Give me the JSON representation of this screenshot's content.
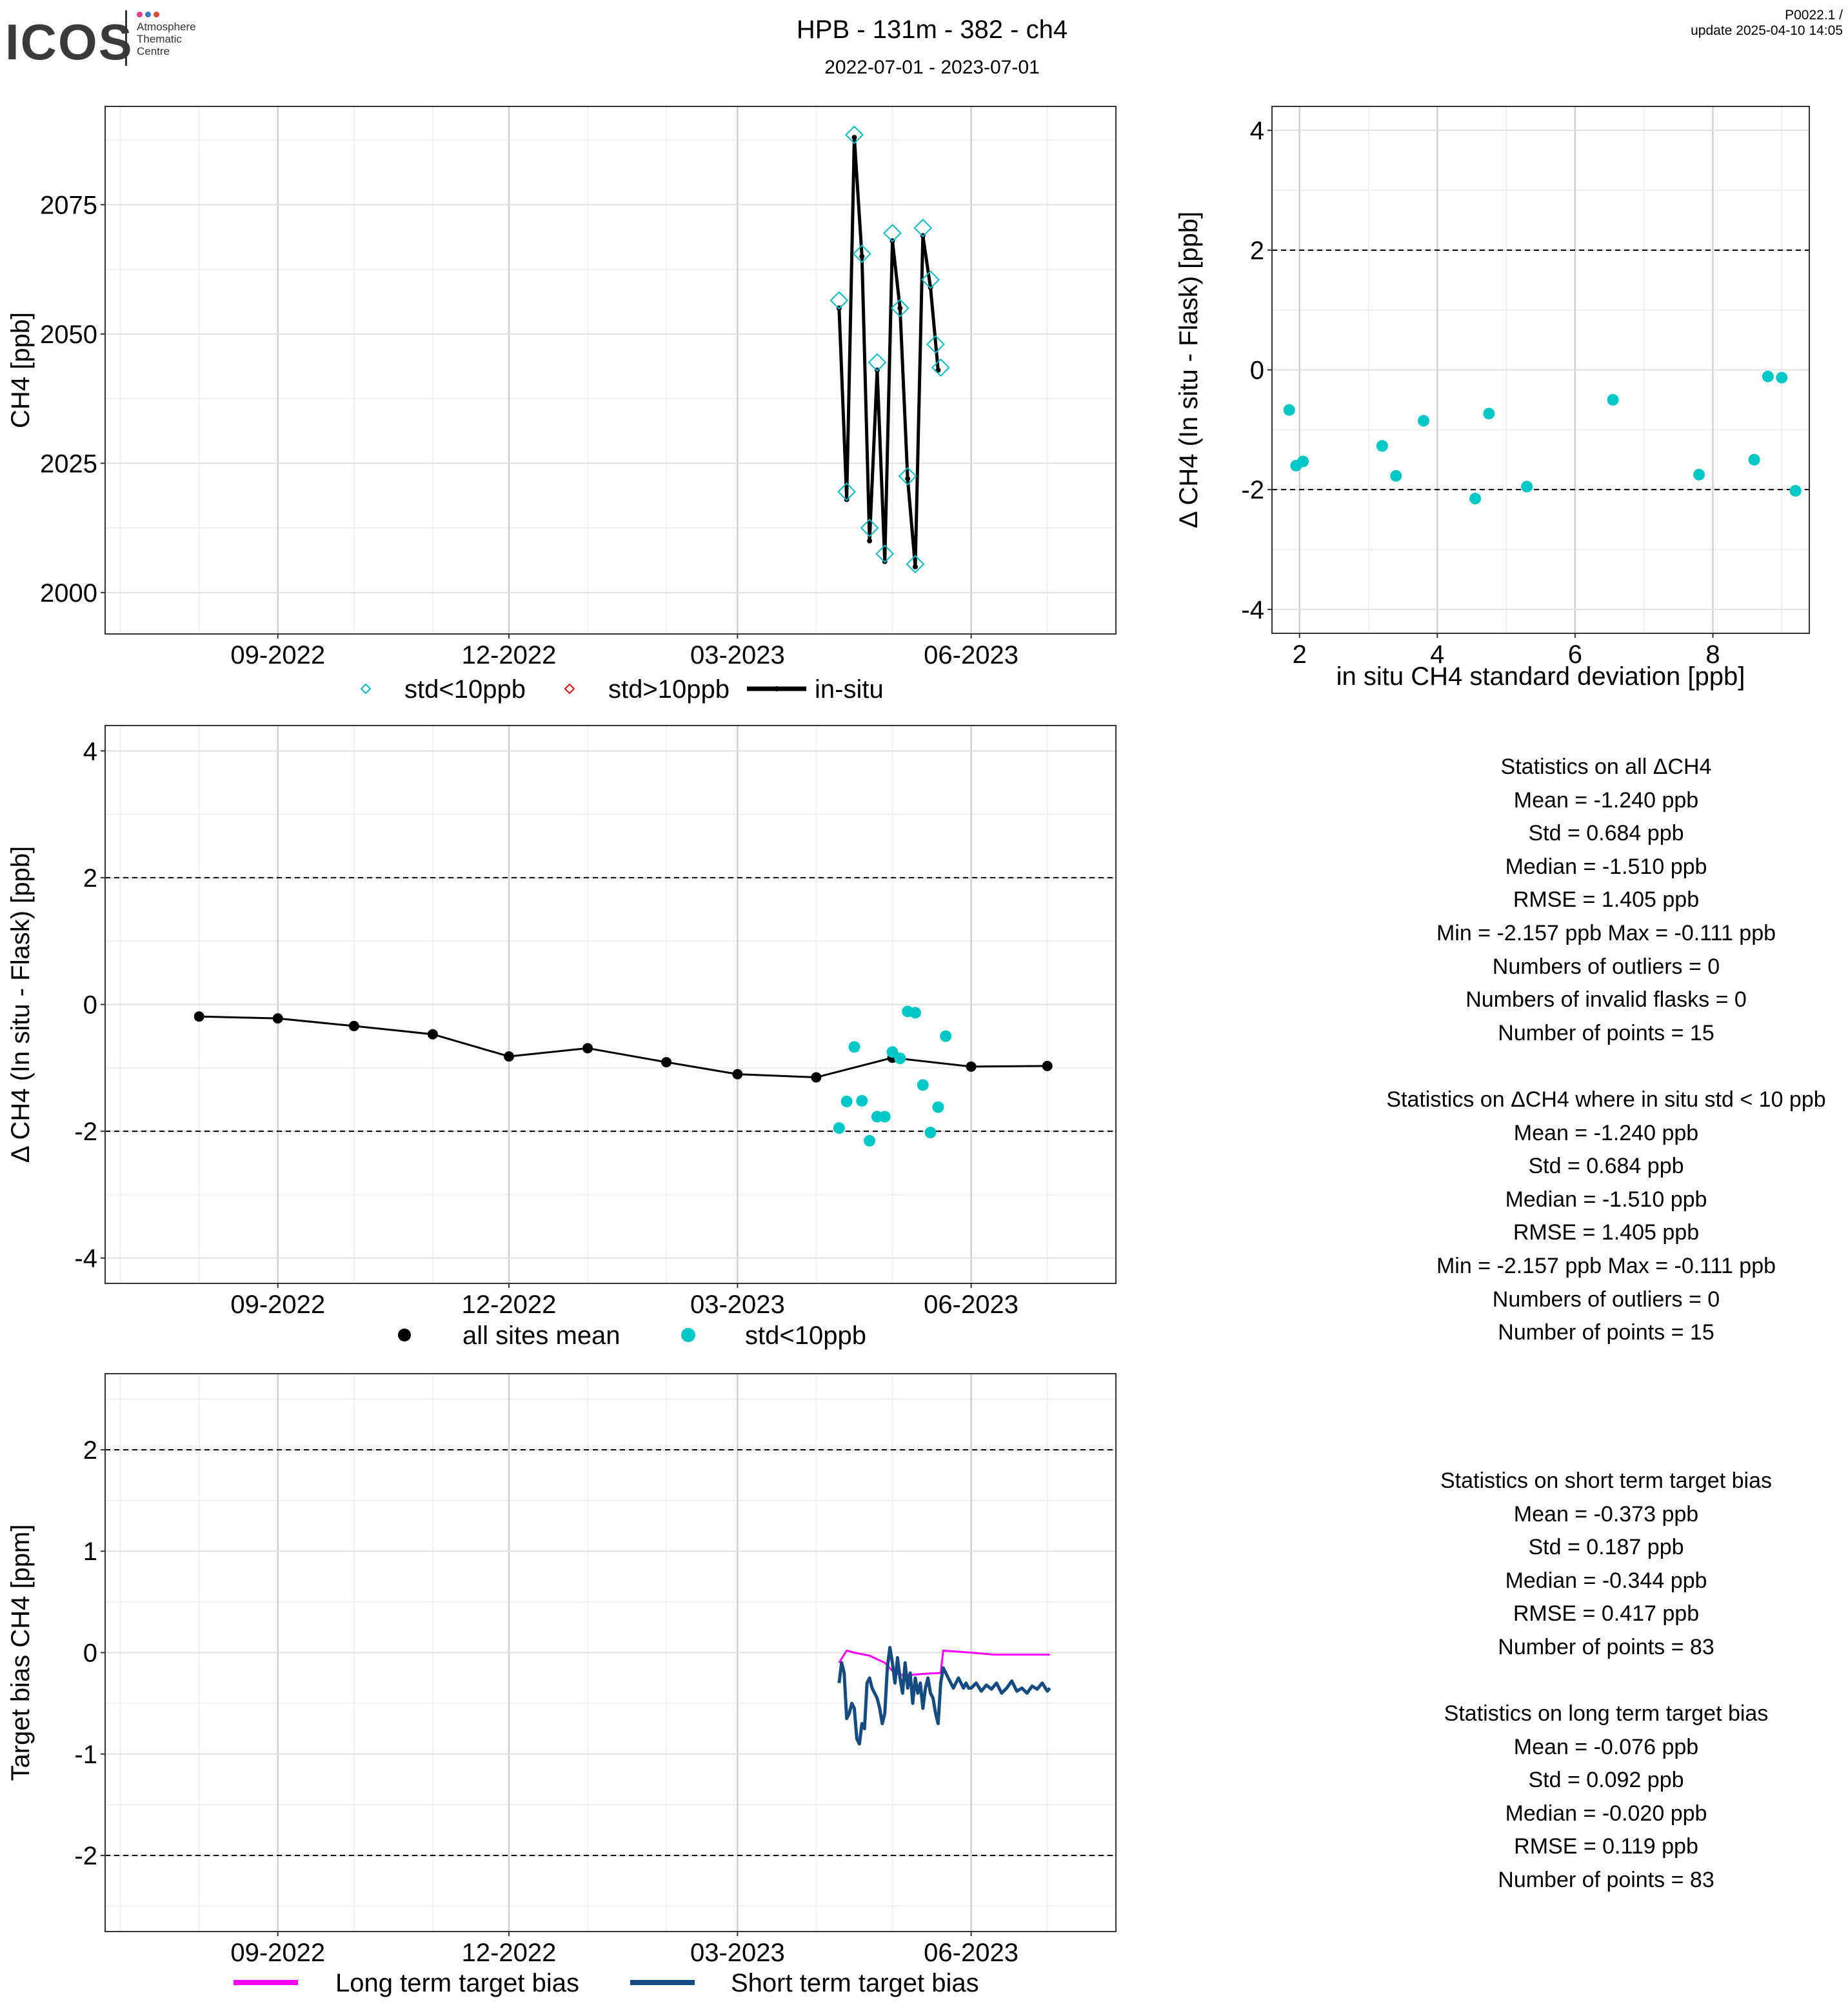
{
  "header": {
    "logo_text": "ICOS",
    "logo_subtitle": "Atmosphere\nThematic\nCentre",
    "title": "HPB - 131m - 382 - ch4",
    "date_range": "2022-07-01 - 2023-07-01",
    "version": "P0022.1 /",
    "update": "update  2025-04-10 14:05",
    "colors": {
      "logo_dot1": "#e63c8c",
      "logo_dot2": "#3c78c8",
      "logo_dot3": "#e64632"
    }
  },
  "chart_data": [
    {
      "id": "timeseries",
      "type": "line",
      "title": "",
      "xlabel": "",
      "ylabel": "CH4 [ppb]",
      "xlim": [
        "2022-06-25",
        "2023-07-28"
      ],
      "ylim": [
        1992,
        2094
      ],
      "xticks": [
        {
          "date": "2022-09-01",
          "label": "09-2022"
        },
        {
          "date": "2022-12-01",
          "label": "12-2022"
        },
        {
          "date": "2023-03-01",
          "label": "03-2023"
        },
        {
          "date": "2023-06-01",
          "label": "06-2023"
        }
      ],
      "yticks": [
        2000,
        2025,
        2050,
        2075
      ],
      "grid": true,
      "legend_position": "bottom",
      "legend": [
        "std<10ppb",
        "std>10ppb",
        "in-situ"
      ],
      "series": [
        {
          "name": "in-situ",
          "color": "#000000",
          "x": [
            "2023-04-10",
            "2023-04-13",
            "2023-04-16",
            "2023-04-19",
            "2023-04-22",
            "2023-04-25",
            "2023-04-28",
            "2023-05-01",
            "2023-05-04",
            "2023-05-07",
            "2023-05-10",
            "2023-05-13",
            "2023-05-16",
            "2023-05-19"
          ],
          "y": [
            2055,
            2018,
            2088,
            2065,
            2010,
            2043,
            2006,
            2068,
            2055,
            2022,
            2005,
            2069,
            2059,
            2043
          ]
        },
        {
          "name": "std<10ppb",
          "color": "#00bec8",
          "x": [
            "2023-04-10",
            "2023-04-13",
            "2023-04-16",
            "2023-04-19",
            "2023-04-22",
            "2023-04-25",
            "2023-04-28",
            "2023-05-01",
            "2023-05-04",
            "2023-05-07",
            "2023-05-10",
            "2023-05-13",
            "2023-05-16",
            "2023-05-18",
            "2023-05-20"
          ],
          "y": [
            2056.5,
            2019.5,
            2088.5,
            2065.5,
            2012.5,
            2044.5,
            2007.5,
            2069.5,
            2055,
            2022.5,
            2005.5,
            2070.5,
            2060.5,
            2048,
            2043.5
          ]
        }
      ]
    },
    {
      "id": "scatter_std",
      "type": "scatter",
      "title": "",
      "xlabel": "in situ CH4 standard deviation [ppb]",
      "ylabel": "Δ CH4 (In situ - Flask) [ppb]",
      "xlim": [
        1.6,
        9.4
      ],
      "ylim": [
        -4.4,
        4.4
      ],
      "xticks": [
        2,
        4,
        6,
        8
      ],
      "yticks": [
        -4,
        -2,
        0,
        2,
        4
      ],
      "hlines": [
        2,
        -2
      ],
      "grid": true,
      "series": [
        {
          "name": "std<10ppb",
          "color": "#00c8c8",
          "x": [
            1.85,
            1.95,
            2.05,
            3.2,
            3.4,
            3.8,
            4.55,
            4.75,
            5.3,
            6.55,
            7.8,
            8.6,
            8.8,
            9.0,
            9.2
          ],
          "y": [
            -0.67,
            -1.6,
            -1.53,
            -1.27,
            -1.77,
            -0.85,
            -2.15,
            -0.73,
            -1.95,
            -0.5,
            -1.75,
            -1.5,
            -0.11,
            -0.13,
            -2.02
          ]
        }
      ]
    },
    {
      "id": "delta_timeseries",
      "type": "scatter",
      "title": "",
      "xlabel": "",
      "ylabel": "Δ CH4 (In situ - Flask) [ppb]",
      "xlim": [
        "2022-06-25",
        "2023-07-28"
      ],
      "ylim": [
        -4.4,
        4.4
      ],
      "xticks": [
        {
          "date": "2022-09-01",
          "label": "09-2022"
        },
        {
          "date": "2022-12-01",
          "label": "12-2022"
        },
        {
          "date": "2023-03-01",
          "label": "03-2023"
        },
        {
          "date": "2023-06-01",
          "label": "06-2023"
        }
      ],
      "yticks": [
        -4,
        -2,
        0,
        2,
        4
      ],
      "hlines": [
        2,
        -2
      ],
      "grid": true,
      "legend_position": "bottom",
      "legend": [
        "all sites mean",
        "std<10ppb"
      ],
      "series": [
        {
          "name": "all sites mean",
          "color": "#000000",
          "x": [
            "2022-08-01",
            "2022-09-01",
            "2022-10-01",
            "2022-11-01",
            "2022-12-01",
            "2023-01-01",
            "2023-02-01",
            "2023-03-01",
            "2023-04-01",
            "2023-05-01",
            "2023-06-01",
            "2023-07-01"
          ],
          "y": [
            -0.19,
            -0.22,
            -0.34,
            -0.47,
            -0.82,
            -0.69,
            -0.91,
            -1.1,
            -1.15,
            -0.84,
            -0.98,
            -0.97
          ]
        },
        {
          "name": "std<10ppb",
          "color": "#00c8c8",
          "x": [
            "2023-04-10",
            "2023-04-13",
            "2023-04-16",
            "2023-04-19",
            "2023-04-22",
            "2023-04-25",
            "2023-04-28",
            "2023-05-01",
            "2023-05-04",
            "2023-05-07",
            "2023-05-10",
            "2023-05-13",
            "2023-05-16",
            "2023-05-19",
            "2023-05-22"
          ],
          "y": [
            -1.95,
            -1.53,
            -0.67,
            -1.52,
            -2.15,
            -1.77,
            -1.77,
            -0.75,
            -0.85,
            -0.11,
            -0.13,
            -1.27,
            -2.02,
            -1.62,
            -0.5
          ]
        }
      ]
    },
    {
      "id": "target_bias",
      "type": "line",
      "title": "",
      "xlabel": "",
      "ylabel": "Target bias CH4 [ppm]",
      "xlim": [
        "2022-06-25",
        "2023-07-28"
      ],
      "ylim": [
        -2.75,
        2.75
      ],
      "xticks": [
        {
          "date": "2022-09-01",
          "label": "09-2022"
        },
        {
          "date": "2022-12-01",
          "label": "12-2022"
        },
        {
          "date": "2023-03-01",
          "label": "03-2023"
        },
        {
          "date": "2023-06-01",
          "label": "06-2023"
        }
      ],
      "yticks": [
        -2,
        -1,
        0,
        1,
        2
      ],
      "hlines": [
        2,
        -2
      ],
      "grid": true,
      "legend_position": "bottom",
      "legend": [
        "Long term target bias",
        "Short term target bias"
      ],
      "series": [
        {
          "name": "Long term target bias",
          "color": "#ff00ff",
          "x": [
            "2023-04-10",
            "2023-04-13",
            "2023-04-16",
            "2023-04-22",
            "2023-04-28",
            "2023-05-01",
            "2023-05-04",
            "2023-05-08",
            "2023-05-13",
            "2023-05-20",
            "2023-05-21",
            "2023-06-01",
            "2023-06-10",
            "2023-06-20",
            "2023-07-02"
          ],
          "y": [
            -0.1,
            0.02,
            0.0,
            -0.03,
            -0.1,
            -0.18,
            -0.22,
            -0.22,
            -0.21,
            -0.2,
            0.02,
            0.0,
            -0.02,
            -0.02,
            -0.02
          ]
        },
        {
          "name": "Short term target bias",
          "color": "#144b82",
          "x": [
            "2023-04-10",
            "2023-04-11",
            "2023-04-12",
            "2023-04-13",
            "2023-04-14",
            "2023-04-15",
            "2023-04-16",
            "2023-04-17",
            "2023-04-18",
            "2023-04-19",
            "2023-04-20",
            "2023-04-21",
            "2023-04-22",
            "2023-04-23",
            "2023-04-24",
            "2023-04-25",
            "2023-04-26",
            "2023-04-27",
            "2023-04-28",
            "2023-04-29",
            "2023-04-30",
            "2023-05-01",
            "2023-05-02",
            "2023-05-03",
            "2023-05-04",
            "2023-05-05",
            "2023-05-06",
            "2023-05-07",
            "2023-05-08",
            "2023-05-09",
            "2023-05-10",
            "2023-05-11",
            "2023-05-12",
            "2023-05-13",
            "2023-05-14",
            "2023-05-15",
            "2023-05-16",
            "2023-05-17",
            "2023-05-18",
            "2023-05-19",
            "2023-05-20",
            "2023-05-21",
            "2023-05-22",
            "2023-05-23",
            "2023-05-24",
            "2023-05-25",
            "2023-05-26",
            "2023-05-27",
            "2023-05-28",
            "2023-05-29",
            "2023-05-30",
            "2023-05-31",
            "2023-06-01",
            "2023-06-03",
            "2023-06-05",
            "2023-06-07",
            "2023-06-09",
            "2023-06-11",
            "2023-06-13",
            "2023-06-15",
            "2023-06-17",
            "2023-06-19",
            "2023-06-21",
            "2023-06-23",
            "2023-06-25",
            "2023-06-27",
            "2023-06-29",
            "2023-07-01",
            "2023-07-02"
          ],
          "y": [
            -0.3,
            -0.1,
            -0.2,
            -0.65,
            -0.6,
            -0.5,
            -0.55,
            -0.85,
            -0.9,
            -0.7,
            -0.75,
            -0.3,
            -0.25,
            -0.35,
            -0.4,
            -0.45,
            -0.55,
            -0.7,
            -0.6,
            -0.15,
            0.05,
            -0.1,
            -0.3,
            -0.05,
            -0.25,
            -0.4,
            -0.1,
            -0.35,
            -0.2,
            -0.5,
            -0.25,
            -0.4,
            -0.3,
            -0.55,
            -0.35,
            -0.25,
            -0.4,
            -0.45,
            -0.6,
            -0.7,
            -0.3,
            -0.15,
            -0.2,
            -0.25,
            -0.3,
            -0.35,
            -0.3,
            -0.25,
            -0.3,
            -0.35,
            -0.3,
            -0.35,
            -0.35,
            -0.3,
            -0.38,
            -0.32,
            -0.36,
            -0.3,
            -0.4,
            -0.35,
            -0.28,
            -0.38,
            -0.35,
            -0.4,
            -0.33,
            -0.36,
            -0.3,
            -0.38,
            -0.35
          ]
        }
      ]
    }
  ],
  "stats": {
    "all_delta": [
      "Statistics on all ΔCH4",
      "Mean =  -1.240 ppb",
      "Std =  0.684 ppb",
      "Median =  -1.510 ppb",
      "RMSE =  1.405 ppb",
      "Min =  -2.157 ppb Max =  -0.111 ppb",
      "Numbers of outliers =  0",
      "Numbers of invalid flasks =  0",
      "Number of points =  15"
    ],
    "std_delta": [
      "Statistics on ΔCH4 where in situ std < 10 ppb",
      "Mean =  -1.240 ppb",
      "Std =  0.684 ppb",
      "Median =  -1.510 ppb",
      "RMSE =  1.405 ppb",
      "Min =  -2.157 ppb Max =  -0.111 ppb",
      "Numbers of outliers =  0",
      "Number of points =  15"
    ],
    "short_term": [
      "Statistics on short term target bias",
      "Mean =  -0.373 ppb",
      "Std =  0.187 ppb",
      "Median =  -0.344 ppb",
      "RMSE =  0.417 ppb",
      "Number of points =  83"
    ],
    "long_term": [
      "Statistics on long term target bias",
      "Mean =  -0.076 ppb",
      "Std =  0.092 ppb",
      "Median =  -0.020 ppb",
      "RMSE =  0.119 ppb",
      "Number of points =  83"
    ]
  }
}
